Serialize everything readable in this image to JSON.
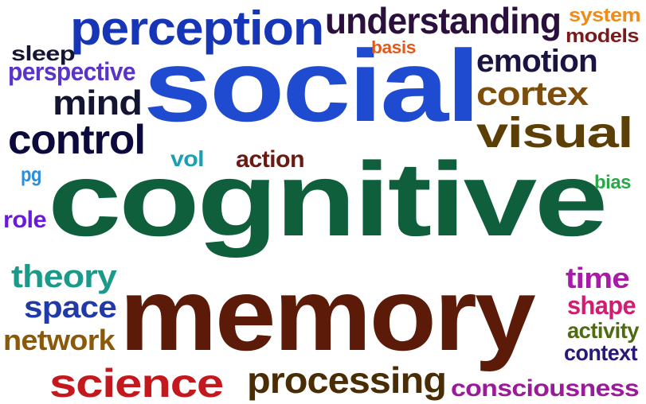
{
  "words": [
    {
      "text": "cognitive",
      "color": "#0f5e3c"
    },
    {
      "text": "memory",
      "color": "#5c1b08"
    },
    {
      "text": "social",
      "color": "#1f4bd1"
    },
    {
      "text": "perception",
      "color": "#1635b7"
    },
    {
      "text": "understanding",
      "color": "#2b0f3d"
    },
    {
      "text": "visual",
      "color": "#5b3f06"
    },
    {
      "text": "control",
      "color": "#0c0a3d"
    },
    {
      "text": "processing",
      "color": "#4a2d05"
    },
    {
      "text": "science",
      "color": "#c3181e"
    },
    {
      "text": "emotion",
      "color": "#1a1442"
    },
    {
      "text": "cortex",
      "color": "#7d4d0c"
    },
    {
      "text": "mind",
      "color": "#141533"
    },
    {
      "text": "theory",
      "color": "#1b9a8a"
    },
    {
      "text": "space",
      "color": "#203aa8"
    },
    {
      "text": "network",
      "color": "#8a5a0a"
    },
    {
      "text": "consciousness",
      "color": "#9a1a9a"
    },
    {
      "text": "time",
      "color": "#a81ba8"
    },
    {
      "text": "shape",
      "color": "#d01d72"
    },
    {
      "text": "activity",
      "color": "#4e6a12"
    },
    {
      "text": "context",
      "color": "#2a1878"
    },
    {
      "text": "perspective",
      "color": "#5a34c8"
    },
    {
      "text": "sleep",
      "color": "#141533"
    },
    {
      "text": "action",
      "color": "#6b1a12"
    },
    {
      "text": "vol",
      "color": "#1aa0b0"
    },
    {
      "text": "role",
      "color": "#6a1ae0"
    },
    {
      "text": "pg",
      "color": "#2a8ee0"
    },
    {
      "text": "bias",
      "color": "#2aa848"
    },
    {
      "text": "system",
      "color": "#f08a18"
    },
    {
      "text": "models",
      "color": "#7a1a1a"
    },
    {
      "text": "basis",
      "color": "#e05a1a"
    }
  ]
}
